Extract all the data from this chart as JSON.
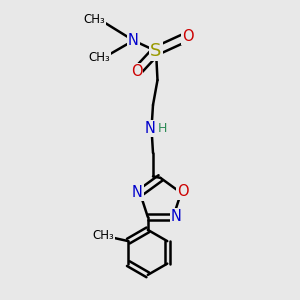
{
  "bg_color": "#e8e8e8",
  "bond_color": "#000000",
  "bond_width": 1.8,
  "figsize": [
    3.0,
    3.0
  ],
  "dpi": 100,
  "xlim": [
    0,
    1
  ],
  "ylim": [
    0,
    1
  ],
  "colors": {
    "N": "#0000cc",
    "O": "#cc0000",
    "S": "#999900",
    "H": "#2e8b57",
    "C": "#000000",
    "me": "#000000"
  }
}
